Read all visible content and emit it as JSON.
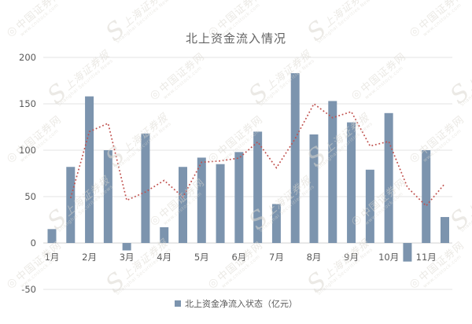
{
  "title": "北上资金流入情况",
  "legend": {
    "label": "北上资金净流入状态（亿元）",
    "marker_color": "#7C94AE"
  },
  "watermark": {
    "type_a": {
      "logo": "◎",
      "text": "中国证券网",
      "caption": "www.cnstock.com"
    },
    "type_b": {
      "logo": "S",
      "text": "上海证券报",
      "caption": "Shanghai Securities News"
    }
  },
  "colors": {
    "bar": "#7C94AE",
    "line": "#C0504D",
    "grid": "#E3E3E3",
    "axis": "#D2D2D2",
    "tick_text": "#595959",
    "background": "#FFFFFF"
  },
  "chart_data": {
    "type": "bar",
    "title": "北上资金流入情况",
    "categories": [
      "1月",
      "2月",
      "3月",
      "4月",
      "5月",
      "6月",
      "7月",
      "8月",
      "9月",
      "10月",
      "11月"
    ],
    "bars_per_category": 2,
    "series": [
      {
        "name": "北上资金净流入状态（亿元）",
        "type": "bar",
        "color": "#7C94AE",
        "values": [
          15,
          82,
          158,
          100,
          -8,
          118,
          17,
          82,
          92,
          85,
          98,
          120,
          42,
          183,
          117,
          153,
          130,
          79,
          140,
          -20,
          100,
          28
        ]
      },
      {
        "name": "trend-dotted-line",
        "type": "dotted-line",
        "color": "#C0504D",
        "values": [
          null,
          48.5,
          120,
          129,
          46,
          55,
          67.5,
          49.5,
          87,
          88.5,
          91.5,
          109,
          81,
          112.5,
          150,
          135,
          141.5,
          104.5,
          109.5,
          60,
          40,
          64
        ]
      }
    ],
    "y_ticks": [
      200,
      150,
      100,
      50,
      0,
      -50
    ],
    "ylim": [
      -50,
      200
    ],
    "xlabel": "",
    "ylabel": "",
    "grid": true,
    "legend_position": "bottom"
  }
}
